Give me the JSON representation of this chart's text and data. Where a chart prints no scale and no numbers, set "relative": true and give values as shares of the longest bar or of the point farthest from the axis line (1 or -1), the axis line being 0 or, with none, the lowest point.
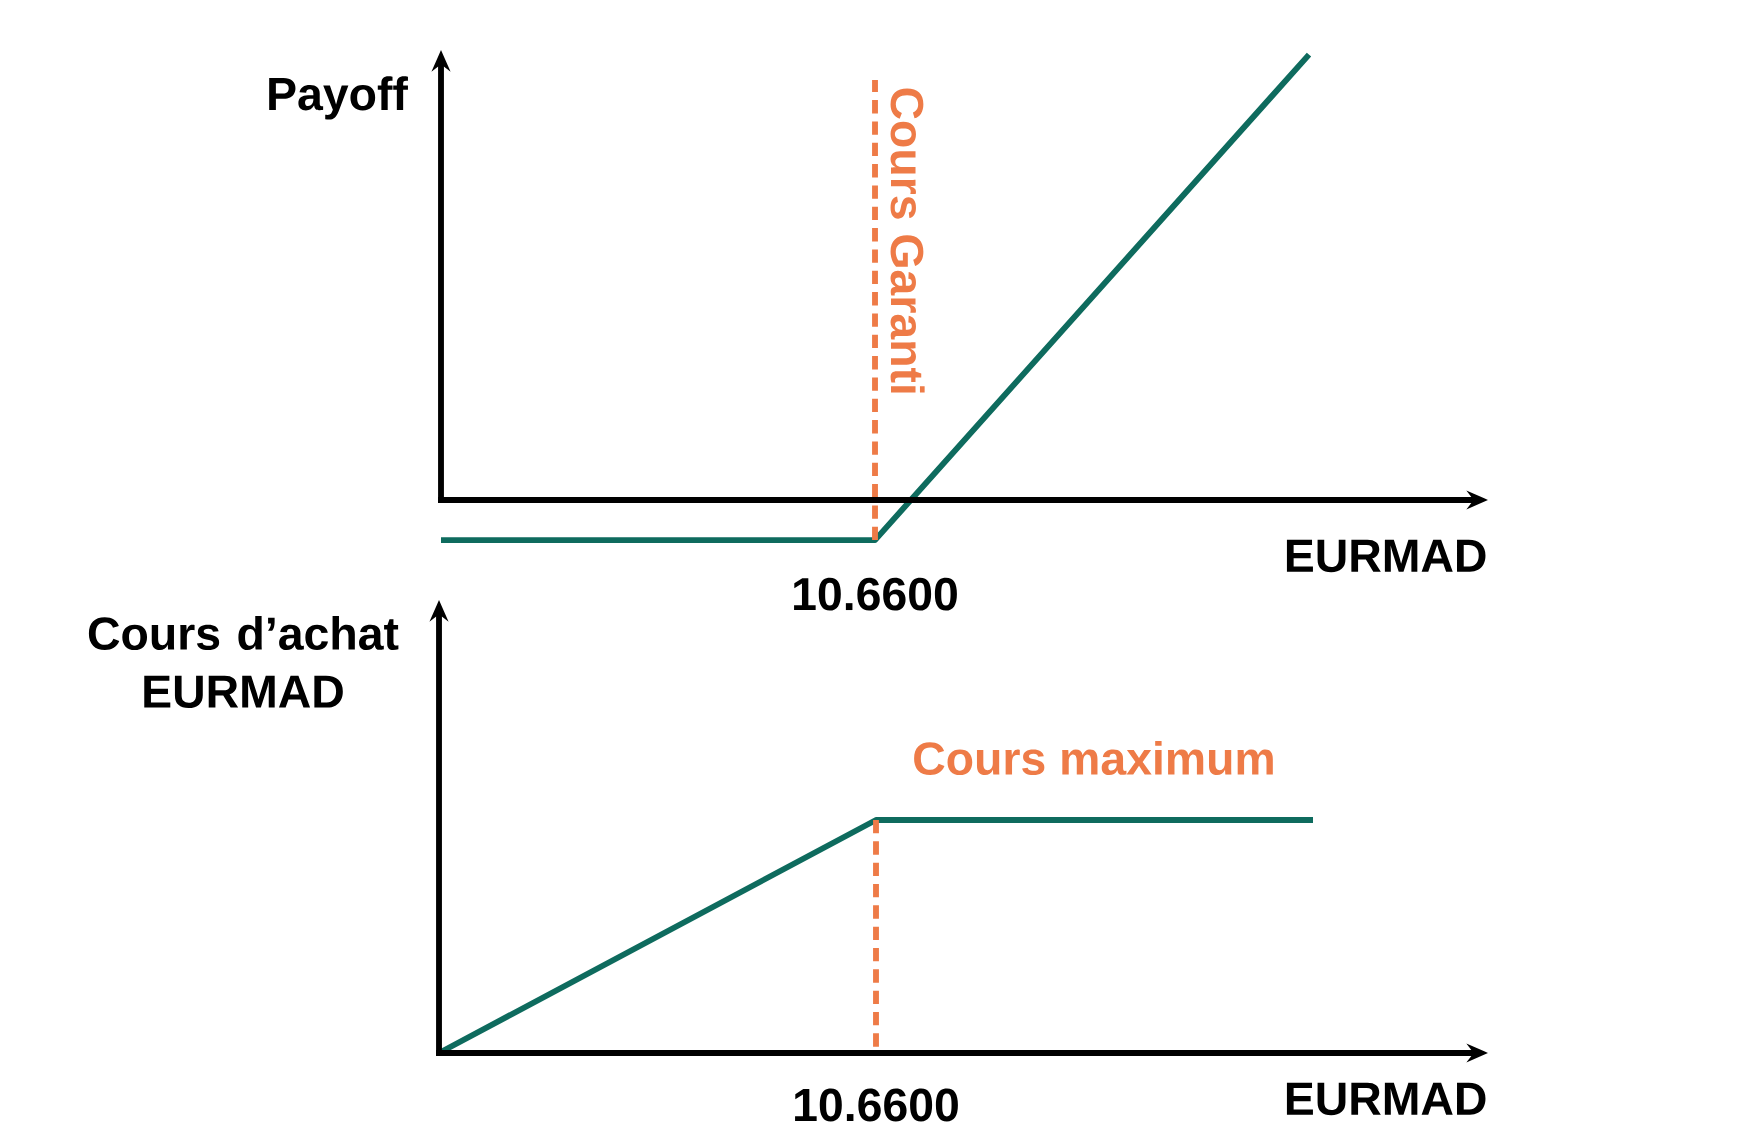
{
  "chart_data": [
    {
      "type": "line",
      "xlabel": "EURMAD",
      "ylabel": "Payoff",
      "categories": [
        null,
        null,
        null
      ],
      "relative": true,
      "series": [
        {
          "color": "#0e6b5e",
          "values": [
            -0.09,
            -0.09,
            1
          ]
        }
      ],
      "ref_lines": [
        {
          "axis": "x",
          "value": "10.6600",
          "label": "Cours Garanti",
          "color": "#ee7b47",
          "line_style": "dashed"
        }
      ]
    },
    {
      "type": "line",
      "xlabel": "EURMAD",
      "ylabel": "Cours d’achat EURMAD",
      "categories": [
        null,
        null,
        null
      ],
      "relative": true,
      "series": [
        {
          "color": "#0e6b5e",
          "values": [
            0,
            1,
            1
          ]
        }
      ],
      "ref_lines": [
        {
          "axis": "x",
          "value": "10.6600",
          "color": "#ee7b47",
          "line_style": "dashed"
        }
      ],
      "annotations": [
        {
          "text": "Cours maximum",
          "y": 1
        }
      ]
    }
  ]
}
